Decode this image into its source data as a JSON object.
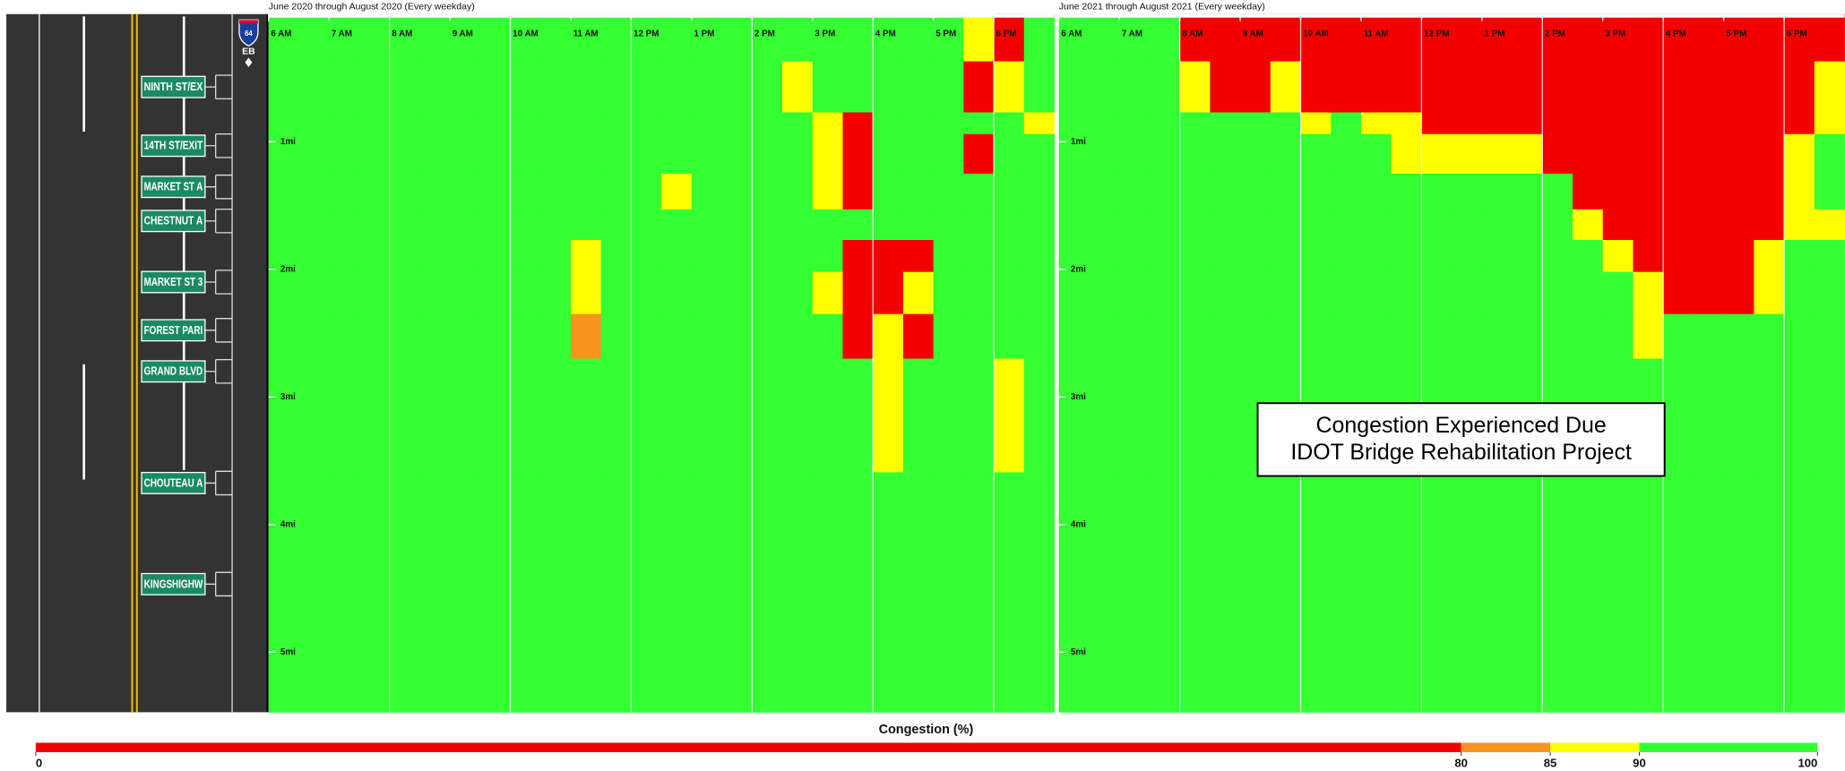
{
  "chart_data": {
    "type": "heatmap",
    "x_edges": [
      6,
      6.5,
      7,
      7.5,
      8,
      8.5,
      9,
      9.5,
      10,
      10.5,
      11,
      11.5,
      12,
      12.5,
      13,
      13.5,
      14,
      14.5,
      15,
      15.5,
      16,
      16.5,
      17,
      17.5,
      18,
      18.5,
      19
    ],
    "y_edges": [
      0,
      0.37,
      0.77,
      0.94,
      1.25,
      1.53,
      1.77,
      2.02,
      2.35,
      2.7,
      3.59,
      5.47
    ],
    "xlim": [
      6,
      19
    ],
    "ylim": [
      0,
      5.47
    ],
    "xticks": [
      {
        "value": 6,
        "label": "6 AM"
      },
      {
        "value": 7,
        "label": "7 AM"
      },
      {
        "value": 8,
        "label": "8 AM"
      },
      {
        "value": 9,
        "label": "9 AM"
      },
      {
        "value": 10,
        "label": "10 AM"
      },
      {
        "value": 11,
        "label": "11 AM"
      },
      {
        "value": 12,
        "label": "12 PM"
      },
      {
        "value": 13,
        "label": "1 PM"
      },
      {
        "value": 14,
        "label": "2 PM"
      },
      {
        "value": 15,
        "label": "3 PM"
      },
      {
        "value": 16,
        "label": "4 PM"
      },
      {
        "value": 17,
        "label": "5 PM"
      },
      {
        "value": 18,
        "label": "6 PM"
      }
    ],
    "xgrid": [
      8,
      10,
      12,
      14,
      16,
      18
    ],
    "yticks": [
      {
        "value": 1,
        "label": "1mi"
      },
      {
        "value": 2,
        "label": "2mi"
      },
      {
        "value": 3,
        "label": "3mi"
      },
      {
        "value": 4,
        "label": "4mi"
      },
      {
        "value": 5,
        "label": "5mi"
      }
    ],
    "panels": [
      {
        "title": "June 2020 through August 2020 (Every weekday)",
        "values": [
          [
            97,
            97,
            97,
            97,
            97,
            97,
            97,
            97,
            97,
            97,
            92,
            97,
            97,
            97,
            97,
            97,
            97,
            97,
            97,
            97,
            97,
            97,
            97,
            87,
            60,
            92
          ],
          [
            97,
            97,
            97,
            97,
            97,
            97,
            97,
            97,
            97,
            92,
            92,
            97,
            92,
            92,
            92,
            92,
            92,
            87,
            92,
            97,
            97,
            97,
            97,
            60,
            87,
            92
          ],
          [
            97,
            97,
            97,
            97,
            97,
            97,
            97,
            97,
            97,
            92,
            92,
            92,
            92,
            92,
            92,
            92,
            92,
            97,
            87,
            60,
            97,
            97,
            97,
            97,
            97,
            87
          ],
          [
            97,
            97,
            97,
            97,
            97,
            97,
            97,
            97,
            97,
            97,
            92,
            92,
            92,
            92,
            92,
            92,
            92,
            97,
            87,
            60,
            97,
            97,
            97,
            60,
            92,
            97
          ],
          [
            97,
            97,
            97,
            97,
            97,
            97,
            97,
            97,
            97,
            92,
            92,
            97,
            92,
            87,
            92,
            92,
            92,
            97,
            87,
            60,
            97,
            97,
            97,
            97,
            92,
            97
          ],
          [
            97,
            97,
            97,
            97,
            97,
            97,
            97,
            97,
            97,
            97,
            97,
            97,
            92,
            92,
            92,
            92,
            92,
            97,
            92,
            97,
            97,
            97,
            97,
            97,
            97,
            97
          ],
          [
            97,
            97,
            97,
            97,
            97,
            97,
            97,
            97,
            97,
            97,
            87,
            97,
            97,
            97,
            97,
            97,
            92,
            92,
            97,
            60,
            60,
            60,
            97,
            97,
            97,
            97
          ],
          [
            97,
            97,
            97,
            97,
            97,
            97,
            97,
            97,
            97,
            97,
            87,
            97,
            97,
            97,
            97,
            97,
            97,
            92,
            87,
            60,
            60,
            87,
            97,
            97,
            97,
            97
          ],
          [
            97,
            97,
            97,
            97,
            97,
            97,
            97,
            97,
            97,
            97,
            82,
            97,
            97,
            97,
            97,
            97,
            97,
            97,
            92,
            60,
            87,
            60,
            97,
            97,
            97,
            97
          ],
          [
            97,
            97,
            97,
            97,
            97,
            97,
            97,
            97,
            97,
            92,
            97,
            97,
            97,
            97,
            97,
            97,
            97,
            97,
            97,
            97,
            87,
            92,
            97,
            97,
            87,
            97
          ],
          [
            97,
            97,
            97,
            97,
            97,
            97,
            97,
            97,
            97,
            97,
            97,
            97,
            97,
            97,
            97,
            97,
            97,
            97,
            97,
            97,
            97,
            97,
            97,
            97,
            97,
            97
          ]
        ]
      },
      {
        "title": "June 2021 through August 2021 (Every weekday)",
        "values": [
          [
            97,
            97,
            97,
            97,
            60,
            60,
            60,
            60,
            60,
            60,
            60,
            60,
            60,
            60,
            60,
            60,
            60,
            60,
            60,
            60,
            60,
            60,
            60,
            60,
            60,
            60
          ],
          [
            97,
            97,
            97,
            97,
            87,
            60,
            60,
            87,
            60,
            60,
            60,
            60,
            60,
            60,
            60,
            60,
            60,
            60,
            60,
            60,
            60,
            60,
            60,
            60,
            60,
            87
          ],
          [
            97,
            97,
            97,
            97,
            97,
            97,
            97,
            97,
            87,
            92,
            87,
            87,
            60,
            60,
            60,
            60,
            60,
            60,
            60,
            60,
            60,
            60,
            60,
            60,
            60,
            87
          ],
          [
            97,
            97,
            97,
            97,
            97,
            97,
            97,
            97,
            97,
            97,
            97,
            87,
            87,
            87,
            87,
            87,
            60,
            60,
            60,
            60,
            60,
            60,
            60,
            60,
            87,
            92
          ],
          [
            97,
            97,
            97,
            97,
            97,
            97,
            97,
            97,
            97,
            97,
            97,
            97,
            97,
            97,
            97,
            97,
            92,
            60,
            60,
            60,
            60,
            60,
            60,
            60,
            87,
            92
          ],
          [
            97,
            97,
            97,
            97,
            97,
            97,
            97,
            97,
            97,
            97,
            97,
            97,
            97,
            97,
            97,
            97,
            97,
            87,
            60,
            60,
            60,
            60,
            60,
            60,
            87,
            87
          ],
          [
            97,
            97,
            97,
            97,
            97,
            97,
            97,
            97,
            97,
            97,
            97,
            97,
            97,
            97,
            97,
            97,
            97,
            97,
            87,
            60,
            60,
            60,
            60,
            87,
            92,
            97
          ],
          [
            97,
            97,
            97,
            97,
            97,
            97,
            97,
            97,
            97,
            97,
            97,
            97,
            97,
            97,
            97,
            97,
            97,
            97,
            97,
            87,
            60,
            60,
            60,
            87,
            97,
            97
          ],
          [
            97,
            97,
            97,
            97,
            97,
            97,
            97,
            97,
            97,
            97,
            97,
            97,
            97,
            97,
            97,
            97,
            97,
            97,
            97,
            87,
            92,
            92,
            92,
            97,
            97,
            97
          ],
          [
            97,
            97,
            97,
            97,
            97,
            97,
            97,
            97,
            97,
            97,
            97,
            97,
            97,
            97,
            97,
            97,
            97,
            97,
            92,
            97,
            97,
            97,
            97,
            97,
            97,
            97
          ],
          [
            97,
            97,
            97,
            97,
            97,
            97,
            97,
            97,
            97,
            97,
            97,
            97,
            97,
            97,
            97,
            97,
            97,
            97,
            97,
            97,
            97,
            97,
            97,
            97,
            97,
            97
          ]
        ]
      }
    ],
    "annotation": [
      "Congestion Experienced Due",
      "IDOT Bridge Rehabilitation Project"
    ],
    "colorbar": {
      "title": "Congestion (%)",
      "ticks": [
        0,
        80,
        85,
        90,
        100
      ],
      "colors": [
        "#f50000",
        "#f7941d",
        "#ffff00",
        "#33ff33"
      ]
    }
  },
  "road": {
    "route": "64",
    "direction": "EB",
    "exits": [
      "NINTH ST/EX",
      "14TH ST/EXIT",
      "MARKET ST A",
      "CHESTNUT A",
      "MARKET ST 3",
      "FOREST PARI",
      "GRAND BLVD",
      "CHOUTEAU A",
      "KINGSHIGHW"
    ]
  }
}
